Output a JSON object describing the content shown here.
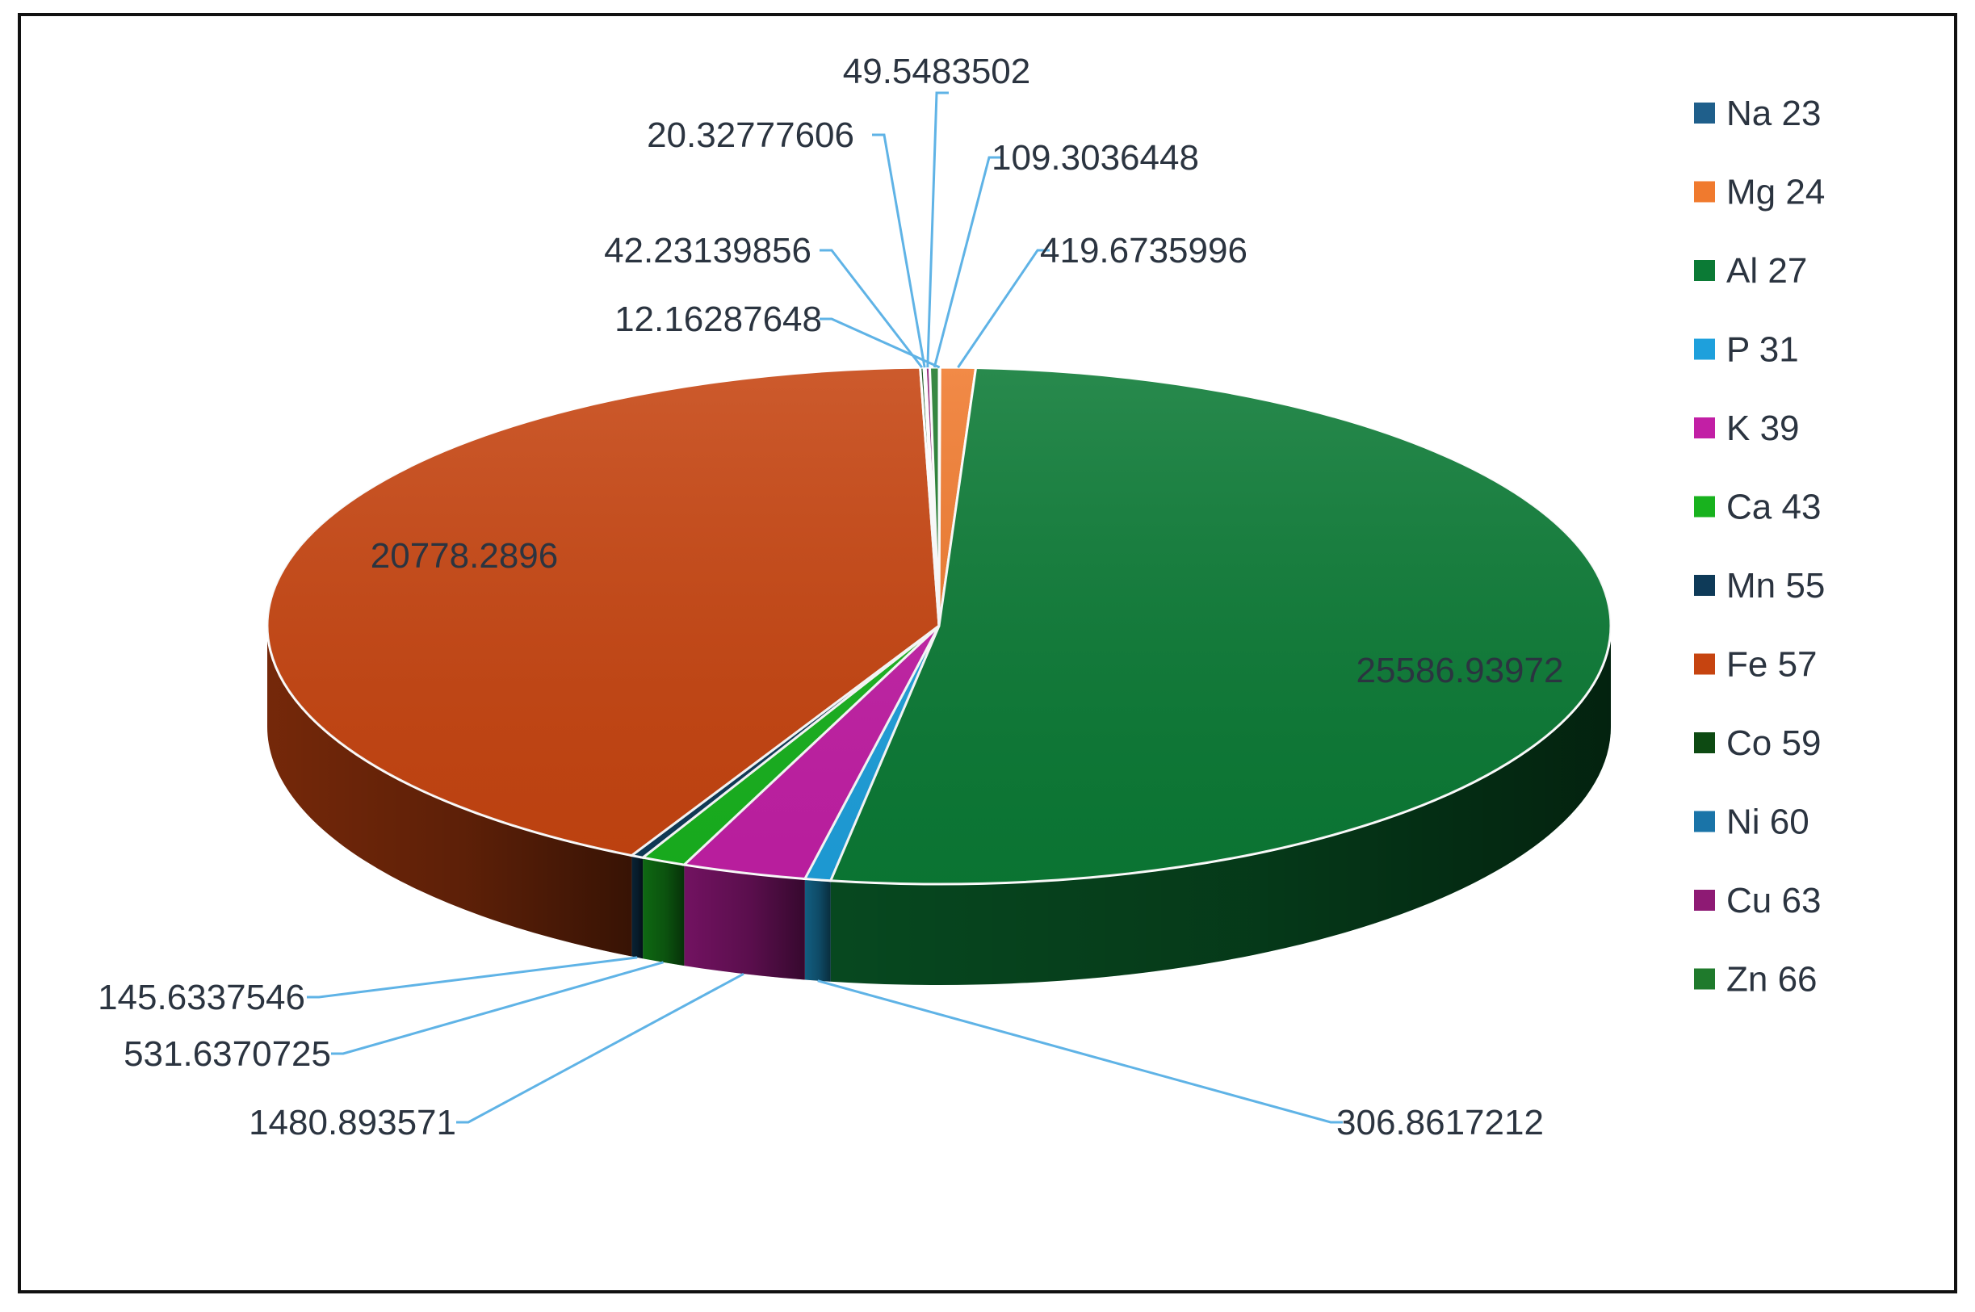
{
  "chart_data": {
    "type": "pie",
    "style": "3d",
    "legend_position": "right",
    "series": [
      {
        "name": "Na 23",
        "value": 12.16287648,
        "label": "12.16287648",
        "color": "#1f5f8b"
      },
      {
        "name": "Mg 24",
        "value": 419.6735996,
        "label": "419.6735996",
        "color": "#f07a2e"
      },
      {
        "name": "Al 27",
        "value": 25586.93972,
        "label": "25586.93972",
        "color": "#0b7a35"
      },
      {
        "name": "P 31",
        "value": 306.8617212,
        "label": "306.8617212",
        "color": "#1ea0dc"
      },
      {
        "name": "K 39",
        "value": 1480.893571,
        "label": "1480.893571",
        "color": "#c21fa5"
      },
      {
        "name": "Ca 43",
        "value": 531.6370725,
        "label": "531.6370725",
        "color": "#18b21e"
      },
      {
        "name": "Mn 55",
        "value": 145.6337546,
        "label": "145.6337546",
        "color": "#0e3a58"
      },
      {
        "name": "Fe 57",
        "value": 20778.2896,
        "label": "20778.2896",
        "color": "#c64410"
      },
      {
        "name": "Co 59",
        "value": 42.23139856,
        "label": "42.23139856",
        "color": "#0d4a12"
      },
      {
        "name": "Ni 60",
        "value": 20.32777606,
        "label": "20.32777606",
        "color": "#1a74a8"
      },
      {
        "name": "Cu 63",
        "value": 49.5483502,
        "label": "49.5483502",
        "color": "#8e1a74"
      },
      {
        "name": "Zn 66",
        "value": 109.3036448,
        "label": "109.3036448",
        "color": "#1f7a2c"
      }
    ]
  }
}
